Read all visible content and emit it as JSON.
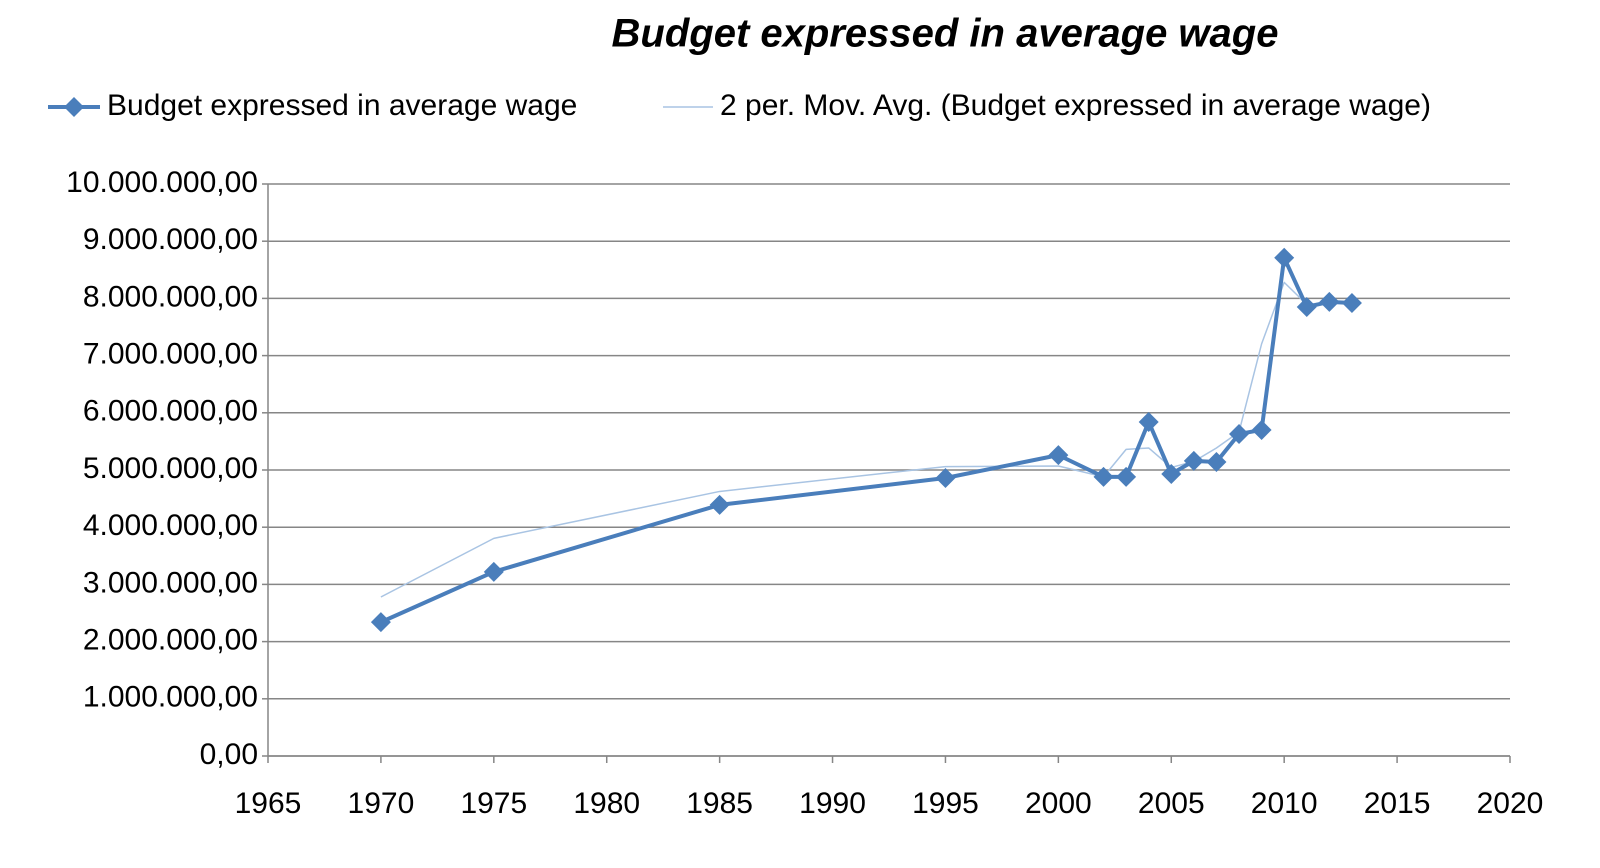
{
  "chart_data": {
    "type": "line",
    "title": "Budget expressed in average wage",
    "x": [
      1970,
      1975,
      1985,
      1995,
      2000,
      2002,
      2003,
      2004,
      2005,
      2006,
      2007,
      2008,
      2009,
      2010,
      2011,
      2012,
      2013
    ],
    "series": [
      {
        "name": "Budget expressed in average wage",
        "color": "#4a7ebb",
        "marker": "diamond",
        "values": [
          2340000,
          3220000,
          4390000,
          4860000,
          5260000,
          4880000,
          4880000,
          5840000,
          4930000,
          5160000,
          5140000,
          5630000,
          5700000,
          8710000,
          7850000,
          7940000,
          7920000
        ]
      },
      {
        "name": "2 per. Mov. Avg. (Budget expressed in average wage)",
        "color": "#a9c4e3",
        "marker": "none",
        "values": [
          2780000,
          3805000,
          4625000,
          5060000,
          5070000,
          4880000,
          5360000,
          5385000,
          5045000,
          5150000,
          5385000,
          5665000,
          7205000,
          8280000,
          7895000,
          7930000,
          null
        ]
      }
    ],
    "xlim": [
      1965,
      2020
    ],
    "xticks": [
      1965,
      1970,
      1975,
      1980,
      1985,
      1990,
      1995,
      2000,
      2005,
      2010,
      2015,
      2020
    ],
    "ylim": [
      0,
      10000000
    ],
    "yticks": [
      {
        "value": 0,
        "label": "0,00"
      },
      {
        "value": 1000000,
        "label": "1.000.000,00"
      },
      {
        "value": 2000000,
        "label": "2.000.000,00"
      },
      {
        "value": 3000000,
        "label": "3.000.000,00"
      },
      {
        "value": 4000000,
        "label": "4.000.000,00"
      },
      {
        "value": 5000000,
        "label": "5.000.000,00"
      },
      {
        "value": 6000000,
        "label": "6.000.000,00"
      },
      {
        "value": 7000000,
        "label": "7.000.000,00"
      },
      {
        "value": 8000000,
        "label": "8.000.000,00"
      },
      {
        "value": 9000000,
        "label": "9.000.000,00"
      },
      {
        "value": 10000000,
        "label": "10.000.000,00"
      }
    ],
    "grid": true,
    "legend": "top"
  }
}
